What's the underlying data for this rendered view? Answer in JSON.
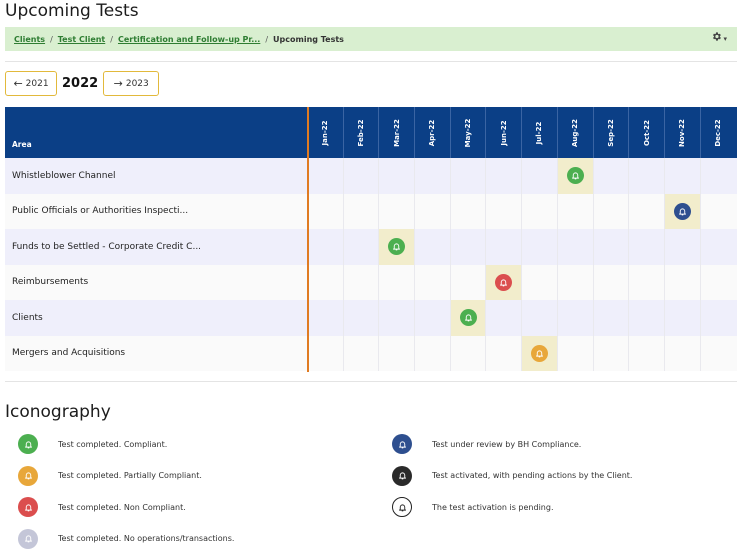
{
  "page": {
    "title": "Upcoming Tests"
  },
  "breadcrumb": {
    "items": [
      "Clients",
      "Test Client",
      "Certification and Follow-up Pr..."
    ],
    "separator": "/",
    "current": "Upcoming Tests",
    "settings_icon": "gear-icon",
    "settings_caret": "▾"
  },
  "year_nav": {
    "prev_label": "2021",
    "prev_arrow": "←",
    "current": "2022",
    "next_label": "2023",
    "next_arrow": "→"
  },
  "grid": {
    "area_header": "Area",
    "months": [
      "Jan-22",
      "Feb-22",
      "Mar-22",
      "Apr-22",
      "May-22",
      "Jun-22",
      "Jul-22",
      "Aug-22",
      "Sep-22",
      "Oct-22",
      "Nov-22",
      "Dec-22"
    ],
    "rows": [
      {
        "area": "Whistleblower Channel",
        "test": {
          "month": "Aug-22",
          "status": "compliant"
        }
      },
      {
        "area": "Public Officials or Authorities Inspecti...",
        "test": {
          "month": "Nov-22",
          "status": "under_review"
        }
      },
      {
        "area": "Funds to be Settled - Corporate Credit C...",
        "test": {
          "month": "Mar-22",
          "status": "compliant"
        }
      },
      {
        "area": "Reimbursements",
        "test": {
          "month": "Jun-22",
          "status": "non_compliant"
        }
      },
      {
        "area": "Clients",
        "test": {
          "month": "May-22",
          "status": "compliant"
        }
      },
      {
        "area": "Mergers and Acquisitions",
        "test": {
          "month": "Jul-22",
          "status": "partially_compliant"
        }
      }
    ]
  },
  "status_colors": {
    "compliant": "#4caf50",
    "partially_compliant": "#e8a73a",
    "non_compliant": "#db4e4e",
    "no_operations": "#c4c6d8",
    "under_review": "#2e4f8f",
    "activated_pending": "#2a2a2a",
    "activation_pending": "#ffffff"
  },
  "colors": {
    "header_bg": "#0b3f86",
    "breadcrumb_bg": "#d9efd0",
    "today_line": "#e07b22",
    "active_cell": "#f2edcc"
  },
  "bell_icon": "bell-icon",
  "bell_glyph": "🔔",
  "iconography": {
    "title": "Iconography",
    "items": [
      {
        "status": "compliant",
        "label": "Test completed. Compliant."
      },
      {
        "status": "partially_compliant",
        "label": "Test completed. Partially Compliant."
      },
      {
        "status": "non_compliant",
        "label": "Test completed. Non Compliant."
      },
      {
        "status": "no_operations",
        "label": "Test completed. No operations/transactions."
      },
      {
        "status": "under_review",
        "label": "Test under review by BH Compliance."
      },
      {
        "status": "activated_pending",
        "label": "Test activated, with pending actions by the Client."
      },
      {
        "status": "activation_pending",
        "label": "The test activation is pending."
      }
    ]
  }
}
